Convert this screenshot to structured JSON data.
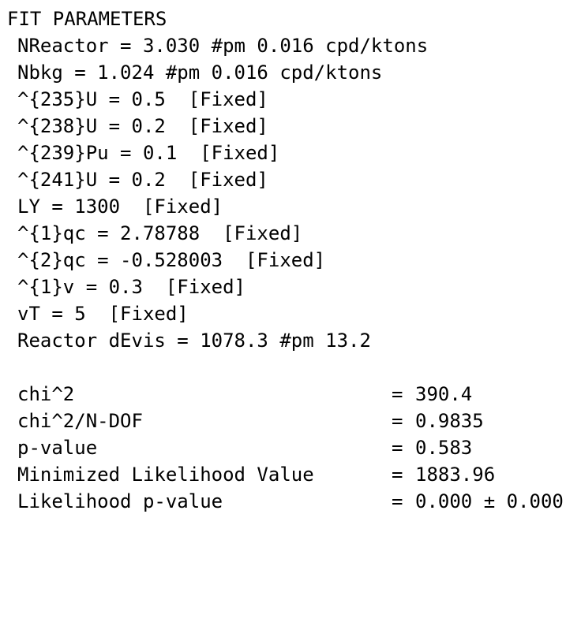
{
  "title": "FIT PARAMETERS",
  "parameters": [
    "NReactor = 3.030 #pm 0.016 cpd/ktons",
    "Nbkg = 1.024 #pm 0.016 cpd/ktons",
    "^{235}U = 0.5  [Fixed]",
    "^{238}U = 0.2  [Fixed]",
    "^{239}Pu = 0.1  [Fixed]",
    "^{241}U = 0.2  [Fixed]",
    "LY = 1300  [Fixed]",
    "^{1}qc = 2.78788  [Fixed]",
    "^{2}qc = -0.528003  [Fixed]",
    "^{1}v = 0.3  [Fixed]",
    "vT = 5  [Fixed]",
    "Reactor dEvis = 1078.3 #pm 13.2"
  ],
  "statistics": [
    {
      "label": "chi^2",
      "eq": "=",
      "value": "390.4"
    },
    {
      "label": "chi^2/N-DOF",
      "eq": "=",
      "value": "0.9835"
    },
    {
      "label": "p-value",
      "eq": "=",
      "value": "0.583"
    },
    {
      "label": "Minimized Likelihood Value",
      "eq": "=",
      "value": "1883.96"
    },
    {
      "label": "Likelihood p-value",
      "eq": "=",
      "value": "0.000 ± 0.000"
    }
  ]
}
